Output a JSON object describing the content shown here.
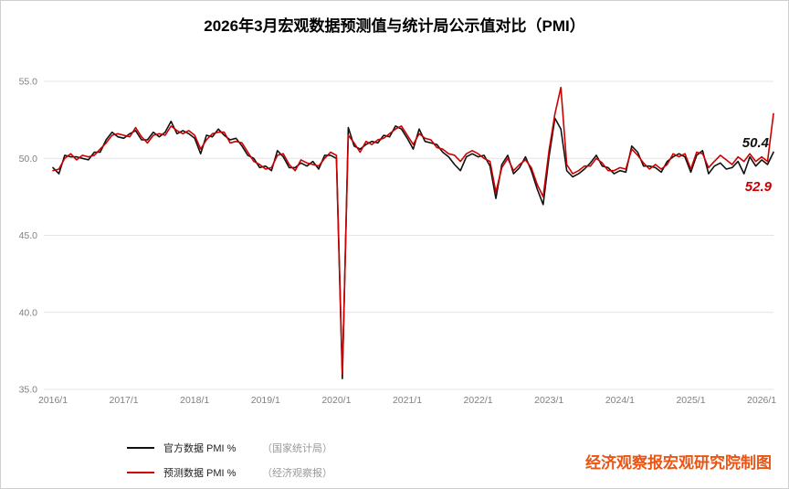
{
  "title": "2026年3月宏观数据预测值与统计局公示值对比（PMI）",
  "watermark": "经济观察报宏观研究院制图",
  "legend": {
    "official_label": "官方数据 PMI %",
    "official_source": "（国家统计局）",
    "forecast_label": "预测数据 PMI %",
    "forecast_source": "（经济观察报）"
  },
  "chart_data": {
    "type": "line",
    "title": "2026年3月宏观数据预测值与统计局公示值对比（PMI）",
    "xlabel": "",
    "ylabel": "",
    "ylim": [
      35,
      55
    ],
    "y_ticks": [
      35,
      40,
      45,
      50,
      55
    ],
    "grid": "horizontal",
    "legend_position": "bottom-left",
    "x_tick_labels": [
      "2016/1",
      "2017/1",
      "2018/1",
      "2019/1",
      "2020/1",
      "2021/1",
      "2022/1",
      "2023/1",
      "2024/1",
      "2025/1",
      "2026/1"
    ],
    "x_tick_month_indices": [
      0,
      12,
      24,
      36,
      48,
      60,
      72,
      84,
      96,
      108,
      120
    ],
    "x_range_note": "monthly points from 2016/1 through 2026/3",
    "series": [
      {
        "name": "官方数据 PMI %",
        "source": "（国家统计局）",
        "color": "#111111",
        "values": [
          49.4,
          49.0,
          50.2,
          50.1,
          50.1,
          50.0,
          49.9,
          50.4,
          50.4,
          51.2,
          51.7,
          51.4,
          51.3,
          51.6,
          51.8,
          51.2,
          51.2,
          51.7,
          51.4,
          51.7,
          52.4,
          51.6,
          51.8,
          51.6,
          51.3,
          50.3,
          51.5,
          51.4,
          51.9,
          51.5,
          51.2,
          51.3,
          50.8,
          50.2,
          50.0,
          49.4,
          49.5,
          49.2,
          50.5,
          50.1,
          49.4,
          49.4,
          49.7,
          49.5,
          49.8,
          49.3,
          50.2,
          50.2,
          50.0,
          35.7,
          52.0,
          50.8,
          50.6,
          50.9,
          51.1,
          51.0,
          51.5,
          51.4,
          52.1,
          51.9,
          51.3,
          50.6,
          51.9,
          51.1,
          51.0,
          50.9,
          50.4,
          50.1,
          49.6,
          49.2,
          50.1,
          50.3,
          50.1,
          50.2,
          49.5,
          47.4,
          49.6,
          50.2,
          49.0,
          49.4,
          50.1,
          49.2,
          48.0,
          47.0,
          50.1,
          52.6,
          51.9,
          49.2,
          48.8,
          49.0,
          49.3,
          49.7,
          50.2,
          49.5,
          49.4,
          49.0,
          49.2,
          49.1,
          50.8,
          50.4,
          49.5,
          49.5,
          49.4,
          49.1,
          49.8,
          50.1,
          50.3,
          50.1,
          49.1,
          50.2,
          50.5,
          49.0,
          49.5,
          49.7,
          49.3,
          49.4,
          49.8,
          49.0,
          50.1,
          49.5,
          49.9,
          49.6,
          50.4
        ]
      },
      {
        "name": "预测数据 PMI %",
        "source": "（经济观察报）",
        "color": "#cc0000",
        "values": [
          49.2,
          49.3,
          50.0,
          50.3,
          49.9,
          50.2,
          50.1,
          50.2,
          50.6,
          51.0,
          51.5,
          51.6,
          51.5,
          51.4,
          52.0,
          51.4,
          51.0,
          51.5,
          51.6,
          51.5,
          52.1,
          51.8,
          51.6,
          51.8,
          51.5,
          50.6,
          51.2,
          51.6,
          51.7,
          51.7,
          51.0,
          51.1,
          51.0,
          50.4,
          49.8,
          49.6,
          49.3,
          49.4,
          50.2,
          50.3,
          49.6,
          49.2,
          49.9,
          49.7,
          49.6,
          49.5,
          50.0,
          50.4,
          50.2,
          36.0,
          51.5,
          51.0,
          50.4,
          51.1,
          50.9,
          51.2,
          51.3,
          51.6,
          51.9,
          52.1,
          51.5,
          50.9,
          51.6,
          51.3,
          51.2,
          50.7,
          50.6,
          50.3,
          50.2,
          49.8,
          50.3,
          50.5,
          50.3,
          50.0,
          49.8,
          47.8,
          49.4,
          50.0,
          49.2,
          49.6,
          49.9,
          49.4,
          48.3,
          47.5,
          50.5,
          52.9,
          54.6,
          49.6,
          49.0,
          49.2,
          49.5,
          49.5,
          50.0,
          49.7,
          49.2,
          49.2,
          49.4,
          49.3,
          50.6,
          50.2,
          49.7,
          49.3,
          49.6,
          49.3,
          49.6,
          50.3,
          50.1,
          50.3,
          49.3,
          50.4,
          50.3,
          49.4,
          49.8,
          50.2,
          49.9,
          49.6,
          50.1,
          49.8,
          50.3,
          49.8,
          50.1,
          49.8,
          52.9
        ]
      }
    ],
    "annotations": [
      {
        "text": "50.4",
        "color": "#111111"
      },
      {
        "text": "52.9",
        "color": "#cc0000"
      }
    ]
  }
}
